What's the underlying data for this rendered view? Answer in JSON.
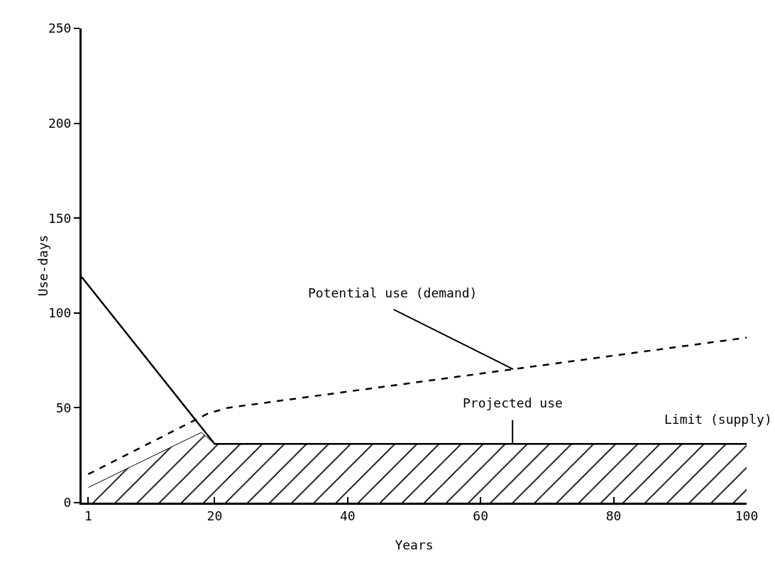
{
  "chart_data": {
    "type": "line",
    "xlabel": "Years",
    "ylabel": "Use-days",
    "xlim": [
      0,
      100
    ],
    "xticks": [
      1,
      20,
      40,
      60,
      80,
      100
    ],
    "ylim": [
      0,
      250
    ],
    "yticks": [
      0,
      50,
      100,
      150,
      200,
      250
    ],
    "grid": false,
    "legend": false,
    "marker": "none",
    "series": [
      {
        "type": "area",
        "name": "Projected use",
        "color": "#000000",
        "x": [
          1,
          18,
          20,
          100
        ],
        "values": [
          8,
          37,
          31,
          31
        ],
        "line_style": "solid"
      },
      {
        "name": "Limit (supply)",
        "color": "#000000",
        "x": [
          0,
          20,
          100
        ],
        "values": [
          119,
          31,
          31
        ],
        "line_style": "solid"
      },
      {
        "name": "Potential use (demand)",
        "color": "#000000",
        "x": [
          1,
          19,
          22,
          100
        ],
        "values": [
          15,
          47,
          50,
          87
        ],
        "line_style": "dashed"
      }
    ]
  }
}
